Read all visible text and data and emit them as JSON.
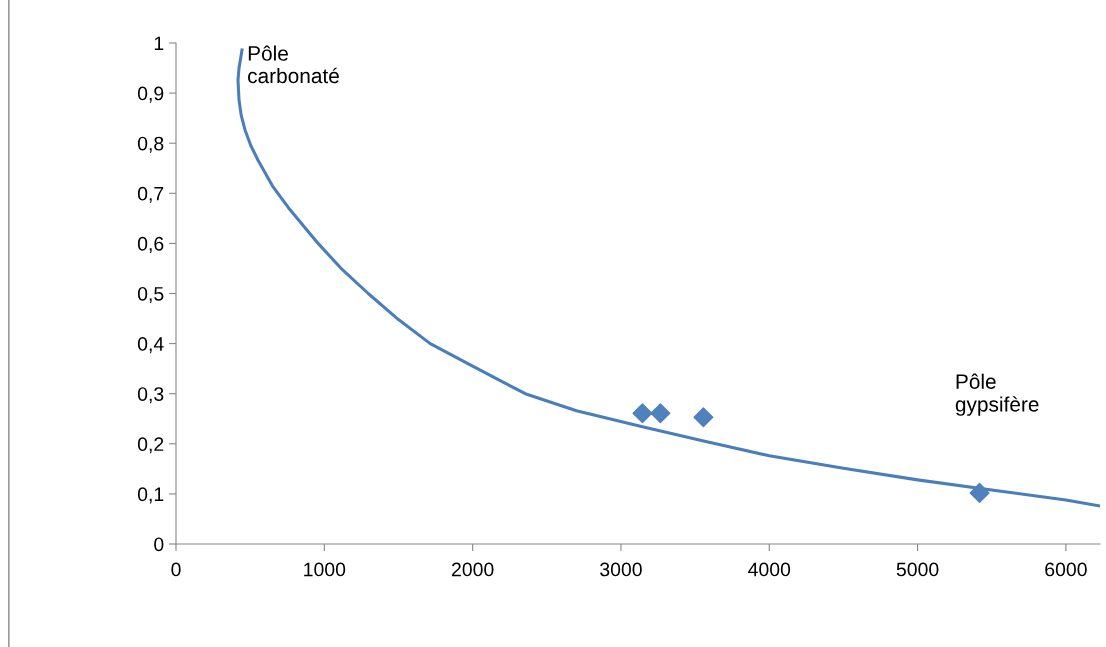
{
  "chart_data": {
    "type": "line",
    "xlim": [
      0,
      6230
    ],
    "ylim": [
      0,
      1
    ],
    "xticks": [
      0,
      1000,
      2000,
      3000,
      4000,
      5000,
      6000
    ],
    "yticks": [
      0,
      {
        "value": 0.1,
        "label": "0,1"
      },
      {
        "value": 0.2,
        "label": "0,2"
      },
      {
        "value": 0.3,
        "label": "0,3"
      },
      {
        "value": 0.4,
        "label": "0,4"
      },
      {
        "value": 0.5,
        "label": "0,5"
      },
      {
        "value": 0.6,
        "label": "0,6"
      },
      {
        "value": 0.7,
        "label": "0,7"
      },
      {
        "value": 0.8,
        "label": "0,8"
      },
      {
        "value": 0.9,
        "label": "0,9"
      },
      1
    ],
    "grid": false,
    "legend": false,
    "series": [
      {
        "color": "#4a7ebb",
        "marker": "none",
        "line_style": "solid",
        "x": [
          445,
          425,
          418,
          425,
          440,
          466,
          505,
          553,
          650,
          769,
          958,
          1120,
          1296,
          1500,
          1714,
          2000,
          2355,
          2700,
          3145,
          3550,
          4000,
          4500,
          5000,
          5500,
          6000,
          6228
        ],
        "values": [
          0.986,
          0.95,
          0.926,
          0.886,
          0.855,
          0.826,
          0.795,
          0.766,
          0.715,
          0.667,
          0.6,
          0.548,
          0.5,
          0.448,
          0.4,
          0.355,
          0.3,
          0.266,
          0.234,
          0.206,
          0.176,
          0.151,
          0.128,
          0.108,
          0.088,
          0.076
        ]
      },
      {
        "type": "scatter",
        "color": "#4f81bd",
        "marker": "diamond",
        "x": [
          3145,
          3266,
          3556,
          5418
        ],
        "values": [
          0.261,
          0.261,
          0.253,
          0.102
        ]
      }
    ],
    "annotations": [
      "Pôle\ncarbonaté",
      "Pôle\ngypsifère"
    ]
  }
}
